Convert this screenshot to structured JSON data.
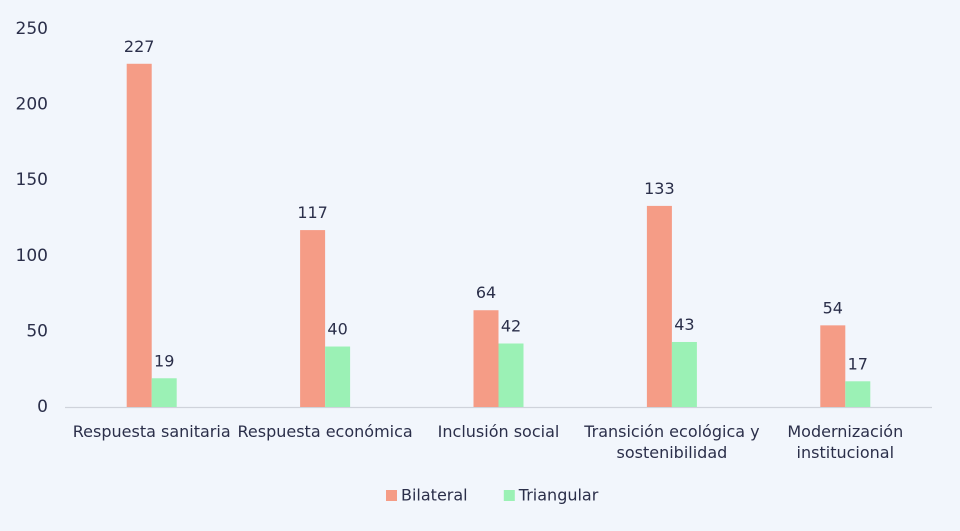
{
  "chart_data": {
    "type": "bar",
    "categories": [
      [
        "Respuesta sanitaria"
      ],
      [
        "Respuesta económica"
      ],
      [
        "Inclusión social"
      ],
      [
        "Transición ecológica y",
        "sostenibilidad"
      ],
      [
        "Modernización",
        "institucional"
      ]
    ],
    "series": [
      {
        "name": "Bilateral",
        "values": [
          227,
          117,
          64,
          133,
          54
        ],
        "color": "#f59c86"
      },
      {
        "name": "Triangular",
        "values": [
          19,
          40,
          42,
          43,
          17
        ],
        "color": "#9bf1b5"
      }
    ],
    "ylim": [
      0,
      250
    ],
    "yticks": [
      0,
      50,
      100,
      150,
      200,
      250
    ],
    "grid": false,
    "legend": "bottom"
  }
}
